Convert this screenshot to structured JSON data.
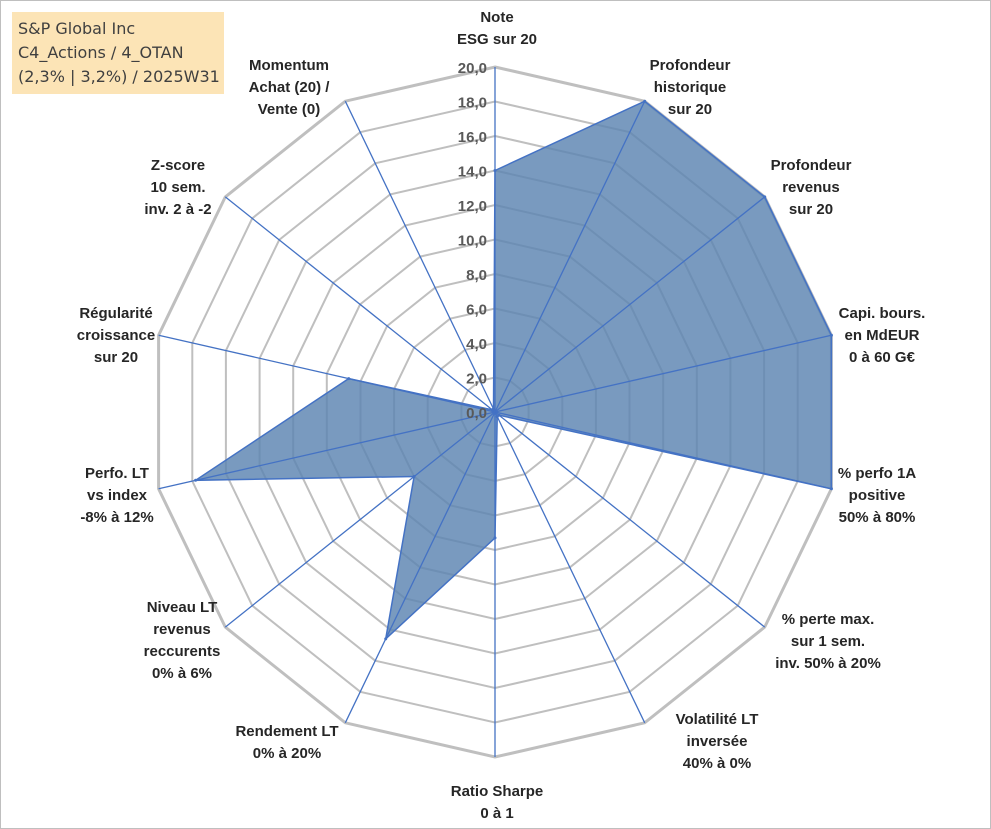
{
  "title_box": {
    "lines": [
      "S&P Global Inc",
      "C4_Actions / 4_OTAN",
      "(2,3% | 3,2%) / 2025W31"
    ]
  },
  "chart_data": {
    "type": "radar",
    "title": "",
    "rlim": [
      0,
      20
    ],
    "ticks": [
      "0,0",
      "2,0",
      "4,0",
      "6,0",
      "8,0",
      "10,0",
      "12,0",
      "14,0",
      "16,0",
      "18,0",
      "20,0"
    ],
    "tick_values": [
      0,
      2,
      4,
      6,
      8,
      10,
      12,
      14,
      16,
      18,
      20
    ],
    "grid": true,
    "categories": [
      [
        "Note",
        "ESG sur 20"
      ],
      [
        "Profondeur",
        "historique",
        "sur 20"
      ],
      [
        "Profondeur",
        "revenus",
        "sur 20"
      ],
      [
        "Capi. bours.",
        "en MdEUR",
        "0 à 60 G€"
      ],
      [
        "% perfo 1A",
        "positive",
        "50% à 80%"
      ],
      [
        "% perte max.",
        "sur 1 sem.",
        "inv. 50% à 20%"
      ],
      [
        "Volatilité LT",
        "inversée",
        "40% à 0%"
      ],
      [
        "Ratio Sharpe",
        "0 à 1"
      ],
      [
        "Rendement LT",
        "0% à 20%"
      ],
      [
        "Niveau LT",
        "revenus",
        "reccurents",
        "0% à 6%"
      ],
      [
        "Perfo. LT",
        "vs index",
        "-8% à 12%"
      ],
      [
        "Régularité",
        "croissance",
        "sur 20"
      ],
      [
        "Z-score",
        "10 sem.",
        "inv. 2 à -2"
      ],
      [
        "Momentum",
        "Achat (20) /",
        "Vente (0)"
      ]
    ],
    "series": [
      {
        "values": [
          14.0,
          20.0,
          20.0,
          20.0,
          20.0,
          0.3,
          0.3,
          7.3,
          14.6,
          6.0,
          17.8,
          8.7,
          0.2,
          0.2
        ],
        "fill": "#5b84b1",
        "stroke": "#4472c4"
      }
    ],
    "colors": {
      "grid": "#bfbfbf",
      "spoke": "#4472c4",
      "fill": "#5b84b1"
    }
  }
}
